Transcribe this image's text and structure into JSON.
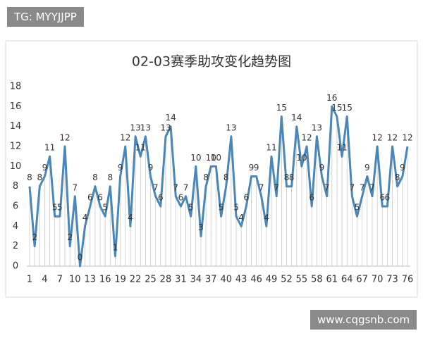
{
  "watermark_top": "TG: MYYJJPP",
  "watermark_bottom": "www.cqgsnb.com",
  "chart_data": {
    "type": "line",
    "title": "02-03赛季助攻变化趋势图",
    "x": [
      1,
      2,
      3,
      4,
      5,
      6,
      7,
      8,
      9,
      10,
      11,
      12,
      13,
      14,
      15,
      16,
      17,
      18,
      19,
      20,
      21,
      22,
      23,
      24,
      25,
      26,
      27,
      28,
      29,
      30,
      31,
      32,
      33,
      34,
      35,
      36,
      37,
      38,
      39,
      40,
      41,
      42,
      43,
      44,
      45,
      46,
      47,
      48,
      49,
      50,
      51,
      52,
      53,
      54,
      55,
      56,
      57,
      58,
      59,
      60,
      61,
      62,
      63,
      64,
      65,
      66,
      67,
      68,
      69,
      70,
      71,
      72,
      73,
      74,
      75,
      76
    ],
    "values": [
      8,
      2,
      8,
      9,
      11,
      5,
      5,
      12,
      2,
      7,
      0,
      4,
      6,
      8,
      6,
      5,
      8,
      1,
      9,
      12,
      4,
      13,
      11,
      13,
      9,
      7,
      6,
      13,
      14,
      7,
      6,
      7,
      5,
      10,
      3,
      8,
      10,
      10,
      5,
      8,
      13,
      5,
      4,
      6,
      9,
      9,
      7,
      4,
      11,
      7,
      15,
      8,
      8,
      14,
      10,
      12,
      6,
      13,
      9,
      7,
      16,
      15,
      11,
      15,
      7,
      5,
      7,
      9,
      7,
      12,
      6,
      6,
      12,
      8,
      9,
      12
    ],
    "color": "#4a86b8",
    "xlim": [
      1,
      76
    ],
    "xticks": [
      1,
      4,
      7,
      10,
      13,
      16,
      19,
      22,
      25,
      28,
      31,
      34,
      37,
      40,
      43,
      46,
      49,
      52,
      55,
      58,
      61,
      64,
      67,
      70,
      73,
      76
    ],
    "ylim": [
      0,
      18
    ],
    "yticks": [
      0,
      2,
      4,
      6,
      8,
      10,
      12,
      14,
      16,
      18
    ],
    "drop_lines": true
  }
}
